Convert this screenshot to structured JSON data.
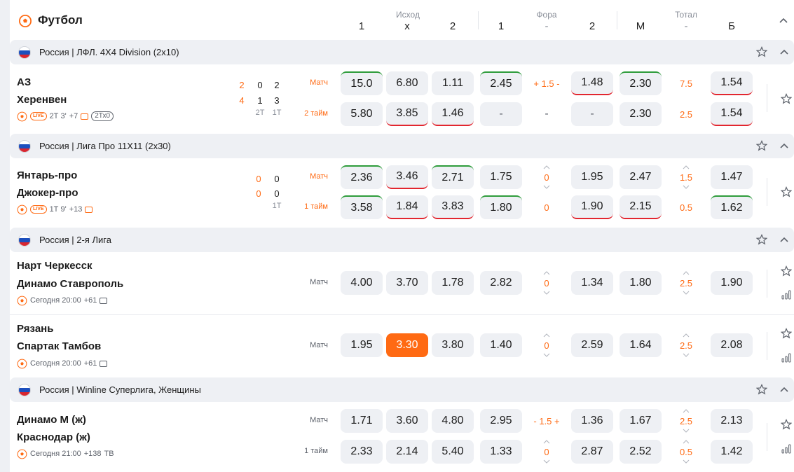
{
  "sport": {
    "title": "Футбол",
    "icon": "soccer-ball-icon"
  },
  "columns": {
    "groups": [
      "Исход",
      "Фора",
      "Тотал"
    ],
    "labels": [
      "1",
      "x",
      "2",
      "1",
      "-",
      "2",
      "М",
      "-",
      "Б"
    ]
  },
  "colors": {
    "accent": "#ff6a13",
    "up": "#2e9c3b",
    "down": "#e2262f",
    "cell_bg": "#eef0f4"
  },
  "leagues": [
    {
      "name": "Россия | ЛФЛ. 4Х4 Division (2x10)",
      "matches": [
        {
          "team1": "АЗ",
          "team2": "Херенвен",
          "score": {
            "total": [
              "2",
              "4"
            ],
            "p2": [
              "0",
              "1"
            ],
            "p1": [
              "2",
              "3"
            ],
            "labels": [
              "2Т",
              "1Т"
            ]
          },
          "meta": {
            "live": "LIVE",
            "time": "2Т 3'",
            "more": "+7",
            "extra": "2Тх0"
          },
          "rows": [
            {
              "label": "Матч",
              "odds": [
                "15.0",
                "6.80",
                "1.11",
                "2.45",
                "+ 1.5 -",
                "1.48",
                "2.30",
                "7.5",
                "1.54"
              ]
            },
            {
              "label": "2 тайм",
              "odds": [
                "5.80",
                "3.85",
                "1.46",
                "-",
                "-",
                "-",
                "2.30",
                "2.5",
                "1.54"
              ]
            }
          ]
        }
      ]
    },
    {
      "name": "Россия | Лига Про 11Х11 (2x30)",
      "matches": [
        {
          "team1": "Янтарь-про",
          "team2": "Джокер-про",
          "score": {
            "total": [
              "0",
              "0"
            ],
            "p1": [
              "0",
              "0"
            ],
            "labels": [
              "1Т"
            ]
          },
          "meta": {
            "live": "LIVE",
            "time": "1Т 9'",
            "more": "+13"
          },
          "rows": [
            {
              "label": "Матч",
              "odds": [
                "2.36",
                "3.46",
                "2.71",
                "1.75",
                "0",
                "1.95",
                "2.47",
                "1.5",
                "1.47"
              ]
            },
            {
              "label": "1 тайм",
              "odds": [
                "3.58",
                "1.84",
                "3.83",
                "1.80",
                "0",
                "1.90",
                "2.15",
                "0.5",
                "1.62"
              ]
            }
          ]
        }
      ]
    },
    {
      "name": "Россия | 2-я Лига",
      "matches": [
        {
          "team1": "Нарт Черкесск",
          "team2": "Динамо Ставрополь",
          "meta": {
            "time": "Сегодня 20:00",
            "more": "+61"
          },
          "rows": [
            {
              "label": "Матч",
              "odds": [
                "4.00",
                "3.70",
                "1.78",
                "2.82",
                "0",
                "1.34",
                "1.80",
                "2.5",
                "1.90"
              ]
            }
          ]
        },
        {
          "team1": "Рязань",
          "team2": "Спартак Тамбов",
          "meta": {
            "time": "Сегодня 20:00",
            "more": "+61"
          },
          "rows": [
            {
              "label": "Матч",
              "odds": [
                "1.95",
                "3.30",
                "3.80",
                "1.40",
                "0",
                "2.59",
                "1.64",
                "2.5",
                "2.08"
              ]
            }
          ]
        }
      ]
    },
    {
      "name": "Россия | Winline Суперлига, Женщины",
      "matches": [
        {
          "team1": "Динамо М (ж)",
          "team2": "Краснодар (ж)",
          "meta": {
            "time": "Сегодня 21:00",
            "more": "+138",
            "extra": "ТВ"
          },
          "rows": [
            {
              "label": "Матч",
              "odds": [
                "1.71",
                "3.60",
                "4.80",
                "2.95",
                "- 1.5 +",
                "1.36",
                "1.67",
                "2.5",
                "2.13"
              ]
            },
            {
              "label": "1 тайм",
              "odds": [
                "2.33",
                "2.14",
                "5.40",
                "1.33",
                "0",
                "2.87",
                "2.52",
                "0.5",
                "1.42"
              ]
            }
          ]
        }
      ]
    }
  ]
}
